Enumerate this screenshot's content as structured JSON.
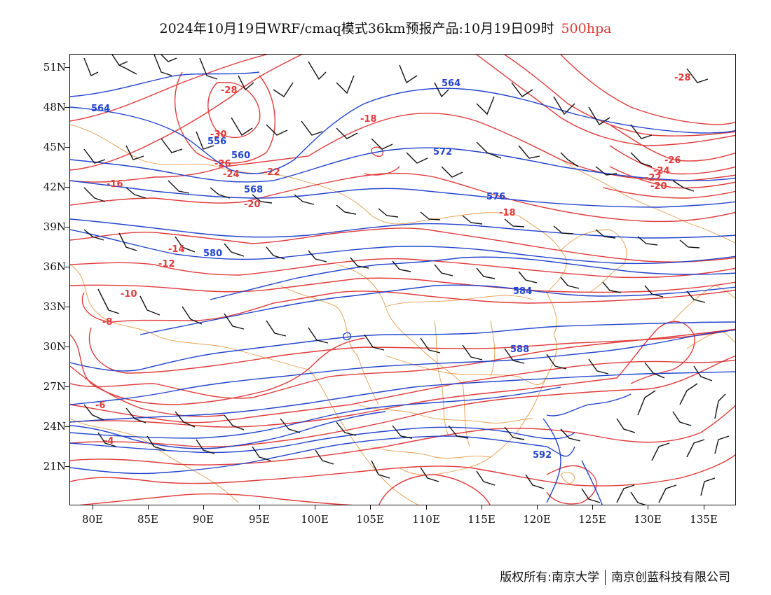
{
  "header": {
    "title": "2024年10月19日WRF/cmaq模式36km预报产品:10月19日09时",
    "level": "500hpa"
  },
  "axes": {
    "lat_labels": [
      "51N",
      "48N",
      "45N",
      "42N",
      "39N",
      "36N",
      "33N",
      "30N",
      "27N",
      "24N",
      "21N"
    ],
    "lon_labels": [
      "80E",
      "85E",
      "90E",
      "95E",
      "100E",
      "105E",
      "110E",
      "115E",
      "120E",
      "125E",
      "130E",
      "135E"
    ]
  },
  "contour_labels": {
    "temperature": [
      "-28",
      "-30",
      "-26",
      "-24",
      "-22",
      "-20",
      "-18",
      "-16",
      "-14",
      "-12",
      "-10",
      "-8",
      "-6",
      "-4",
      "-28",
      "-26",
      "-24",
      "-22",
      "-20",
      "-18"
    ],
    "geopotential": [
      "564",
      "556",
      "560",
      "564",
      "568",
      "572",
      "576",
      "580",
      "584",
      "588",
      "592"
    ]
  },
  "colors": {
    "temperature_contour": "#e03a3a",
    "height_contour": "#2244cc",
    "boundary": "#e08a2a",
    "wind_barb": "#111111"
  },
  "footer": {
    "copyright": "版权所有:南京大学",
    "company": "南京创蓝科技有限公司"
  }
}
